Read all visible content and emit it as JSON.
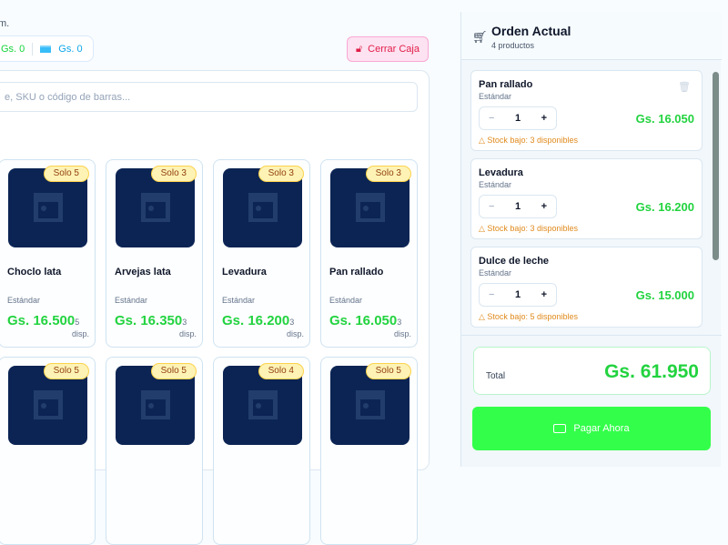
{
  "header": {
    "subtitle_fragment": "m.",
    "cash_total": "Gs. 0",
    "card_total": "Gs. 0",
    "close_button": "Cerrar Caja"
  },
  "search": {
    "placeholder": "e, SKU o código de barras..."
  },
  "products": [
    {
      "name": "Choclo lata",
      "variant": "Estándar",
      "price": "Gs. 16.500",
      "stock": "5",
      "disp": "disp.",
      "badge": "Solo 5"
    },
    {
      "name": "Arvejas lata",
      "variant": "Estándar",
      "price": "Gs. 16.350",
      "stock": "3",
      "disp": "disp.",
      "badge": "Solo 3"
    },
    {
      "name": "Levadura",
      "variant": "Estándar",
      "price": "Gs. 16.200",
      "stock": "3",
      "disp": "disp.",
      "badge": "Solo 3"
    },
    {
      "name": "Pan rallado",
      "variant": "Estándar",
      "price": "Gs. 16.050",
      "stock": "3",
      "disp": "disp.",
      "badge": "Solo 3"
    },
    {
      "badge": "Solo 5"
    },
    {
      "badge": "Solo 5"
    },
    {
      "badge": "Solo 4"
    },
    {
      "badge": "Solo 5"
    }
  ],
  "order": {
    "title": "Orden Actual",
    "count": "4 productos",
    "items": [
      {
        "name": "Pan rallado",
        "variant": "Estándar",
        "qty": "1",
        "price": "Gs. 16.050",
        "warning": "Stock bajo: 3 disponibles"
      },
      {
        "name": "Levadura",
        "variant": "Estándar",
        "qty": "1",
        "price": "Gs. 16.200",
        "warning": "Stock bajo: 3 disponibles"
      },
      {
        "name": "Dulce de leche",
        "variant": "Estándar",
        "qty": "1",
        "price": "Gs. 15.000",
        "warning": "Stock bajo: 5 disponibles"
      }
    ],
    "total_label": "Total",
    "total": "Gs. 61.950",
    "pay_button": "Pagar Ahora"
  },
  "colors": {
    "accent": "#22d33f",
    "pay": "#33ff4a",
    "danger": "#e11d48",
    "image_bg": "#0b2454"
  }
}
